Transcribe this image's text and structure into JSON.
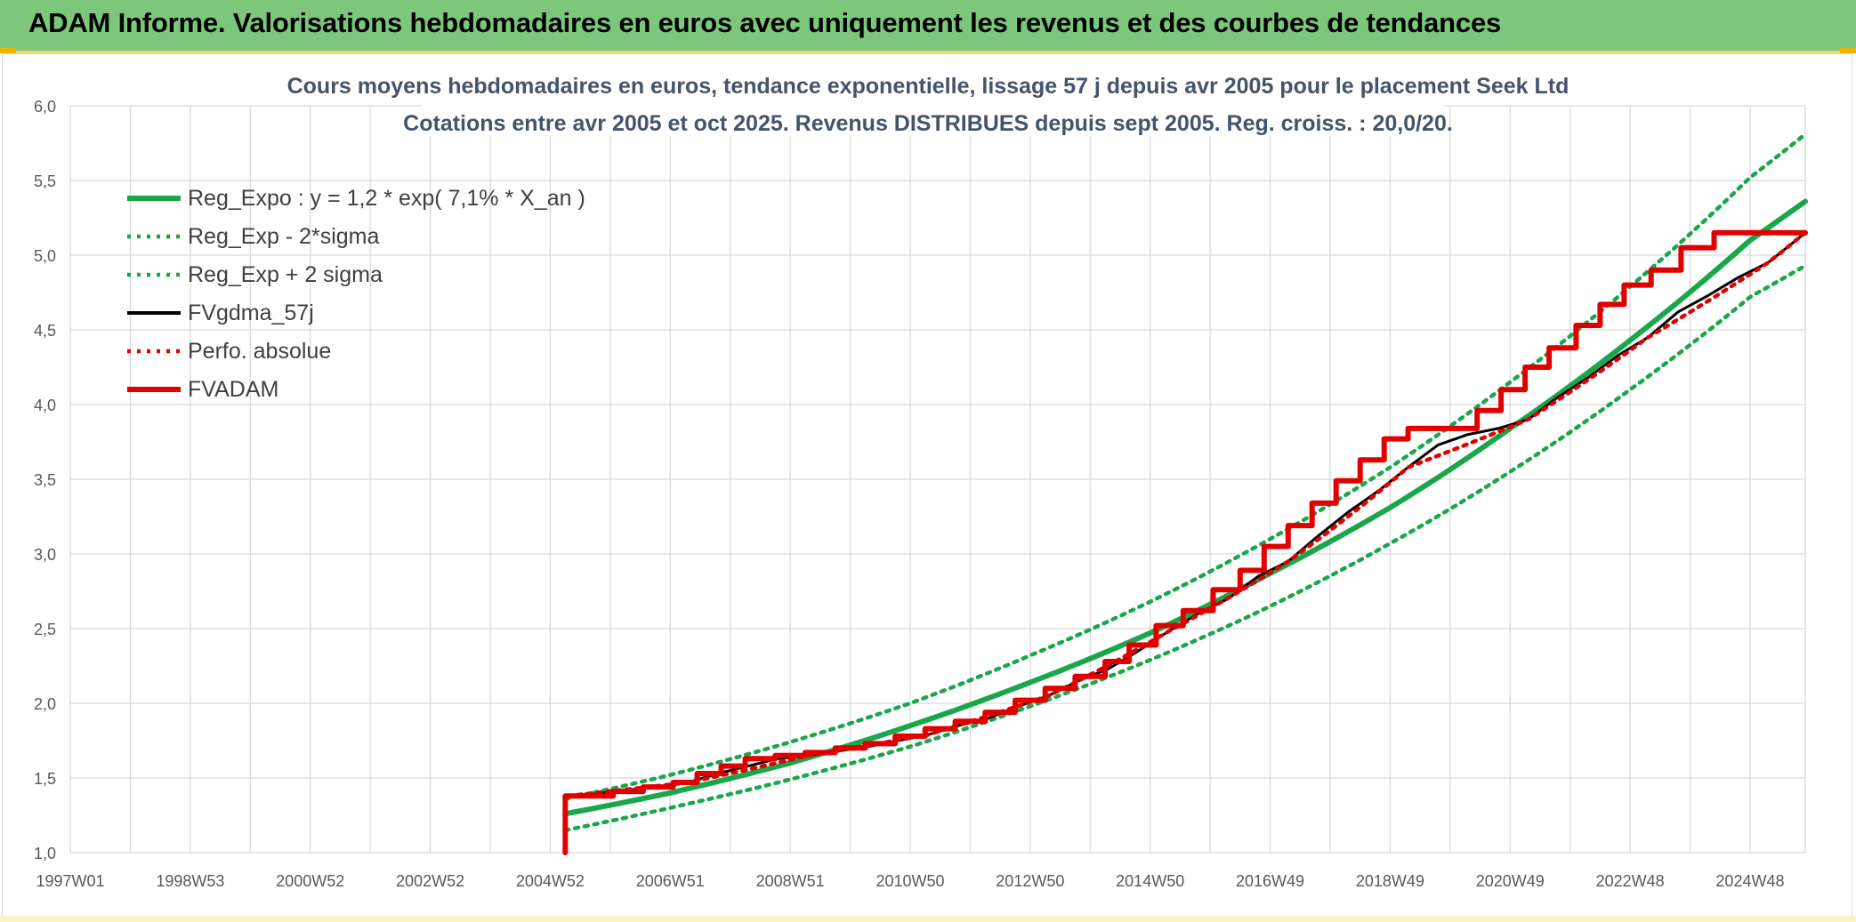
{
  "header": {
    "banner_title": "ADAM Informe. Valorisations hebdomadaires en euros avec uniquement les revenus et des courbes de tendances"
  },
  "colors": {
    "banner_bg": "#7dc77d",
    "reg_expo": "#1aa64b",
    "fv_gdma": "#000000",
    "perfo": "#e00000",
    "fvadam": "#e00000",
    "grid": "#d9d9d9"
  },
  "chart_data": {
    "type": "line",
    "title": "Cours moyens hebdomadaires en euros, tendance exponentielle, lissage 57 j depuis avr 2005 pour le placement Seek Ltd",
    "subtitle": "Cotations entre avr 2005 et oct 2025. Revenus DISTRIBUES depuis sept 2005. Reg. croiss. : 20,0/20.",
    "xlabel": "",
    "ylabel": "",
    "x_range": [
      1997.0,
      2025.92
    ],
    "ylim": [
      1.0,
      6.0
    ],
    "y_ticks": [
      "1,0",
      "1,5",
      "2,0",
      "2,5",
      "3,0",
      "3,5",
      "4,0",
      "4,5",
      "5,0",
      "5,5",
      "6,0"
    ],
    "x_ticks": [
      {
        "label": "1997W01",
        "x": 1997.0
      },
      {
        "label": "1998W53",
        "x": 1999.0
      },
      {
        "label": "2000W52",
        "x": 2001.0
      },
      {
        "label": "2002W52",
        "x": 2003.0
      },
      {
        "label": "2004W52",
        "x": 2005.0
      },
      {
        "label": "2006W51",
        "x": 2007.0
      },
      {
        "label": "2008W51",
        "x": 2009.0
      },
      {
        "label": "2010W50",
        "x": 2011.0
      },
      {
        "label": "2012W50",
        "x": 2013.0
      },
      {
        "label": "2014W50",
        "x": 2015.0
      },
      {
        "label": "2016W49",
        "x": 2017.0
      },
      {
        "label": "2018W49",
        "x": 2019.0
      },
      {
        "label": "2020W49",
        "x": 2021.0
      },
      {
        "label": "2022W48",
        "x": 2023.0
      },
      {
        "label": "2024W48",
        "x": 2025.0
      }
    ],
    "grid": true,
    "legend_position": "top-left",
    "series": [
      {
        "name": "Reg_Expo : y = 1,2 * exp( 7,1% *  X_an )",
        "style": "solid-thick",
        "color": "#1aa64b",
        "points": [
          [
            2005.25,
            1.26
          ],
          [
            2007,
            1.4
          ],
          [
            2009,
            1.6
          ],
          [
            2011,
            1.85
          ],
          [
            2013,
            2.14
          ],
          [
            2015,
            2.47
          ],
          [
            2017,
            2.87
          ],
          [
            2019,
            3.31
          ],
          [
            2021,
            3.84
          ],
          [
            2023,
            4.43
          ],
          [
            2025,
            5.1
          ],
          [
            2025.92,
            5.36
          ]
        ]
      },
      {
        "name": "Reg_Exp - 2*sigma",
        "style": "dotted",
        "color": "#1aa64b",
        "points": [
          [
            2005.25,
            1.15
          ],
          [
            2007,
            1.3
          ],
          [
            2009,
            1.49
          ],
          [
            2011,
            1.71
          ],
          [
            2013,
            1.98
          ],
          [
            2015,
            2.29
          ],
          [
            2017,
            2.65
          ],
          [
            2019,
            3.07
          ],
          [
            2021,
            3.55
          ],
          [
            2023,
            4.1
          ],
          [
            2025,
            4.72
          ],
          [
            2025.92,
            4.93
          ]
        ]
      },
      {
        "name": "Reg_Exp + 2 sigma",
        "style": "dotted",
        "color": "#1aa64b",
        "points": [
          [
            2005.25,
            1.36
          ],
          [
            2007,
            1.52
          ],
          [
            2009,
            1.74
          ],
          [
            2011,
            2.0
          ],
          [
            2013,
            2.32
          ],
          [
            2015,
            2.68
          ],
          [
            2017,
            3.1
          ],
          [
            2019,
            3.58
          ],
          [
            2021,
            4.15
          ],
          [
            2023,
            4.79
          ],
          [
            2025,
            5.52
          ],
          [
            2025.92,
            5.81
          ]
        ]
      },
      {
        "name": "FVgdma_57j",
        "style": "solid",
        "color": "#000000",
        "points": [
          [
            2005.3,
            1.38
          ],
          [
            2005.7,
            1.39
          ],
          [
            2006.3,
            1.42
          ],
          [
            2006.8,
            1.44
          ],
          [
            2007.3,
            1.47
          ],
          [
            2007.8,
            1.53
          ],
          [
            2008.3,
            1.58
          ],
          [
            2008.8,
            1.63
          ],
          [
            2009.3,
            1.65
          ],
          [
            2009.8,
            1.68
          ],
          [
            2010.3,
            1.71
          ],
          [
            2010.8,
            1.75
          ],
          [
            2011.3,
            1.79
          ],
          [
            2011.8,
            1.85
          ],
          [
            2012.3,
            1.9
          ],
          [
            2012.8,
            1.98
          ],
          [
            2013.3,
            2.05
          ],
          [
            2013.8,
            2.15
          ],
          [
            2014.3,
            2.23
          ],
          [
            2014.8,
            2.35
          ],
          [
            2015.3,
            2.48
          ],
          [
            2015.8,
            2.6
          ],
          [
            2016.3,
            2.7
          ],
          [
            2016.8,
            2.85
          ],
          [
            2017.3,
            2.95
          ],
          [
            2017.8,
            3.12
          ],
          [
            2018.3,
            3.28
          ],
          [
            2018.8,
            3.42
          ],
          [
            2019.3,
            3.58
          ],
          [
            2019.8,
            3.73
          ],
          [
            2020.3,
            3.8
          ],
          [
            2020.8,
            3.84
          ],
          [
            2021.3,
            3.9
          ],
          [
            2021.8,
            4.05
          ],
          [
            2022.3,
            4.18
          ],
          [
            2022.8,
            4.33
          ],
          [
            2023.3,
            4.45
          ],
          [
            2023.8,
            4.62
          ],
          [
            2024.3,
            4.73
          ],
          [
            2024.8,
            4.85
          ],
          [
            2025.3,
            4.95
          ],
          [
            2025.92,
            5.15
          ]
        ]
      },
      {
        "name": "Perfo. absolue",
        "style": "dotted",
        "color": "#e00000",
        "points": [
          [
            2005.3,
            1.38
          ],
          [
            2007.3,
            1.47
          ],
          [
            2009.3,
            1.65
          ],
          [
            2011.3,
            1.79
          ],
          [
            2013.3,
            2.05
          ],
          [
            2015.3,
            2.48
          ],
          [
            2017.3,
            2.95
          ],
          [
            2019.3,
            3.58
          ],
          [
            2021.3,
            3.9
          ],
          [
            2023.3,
            4.45
          ],
          [
            2025.3,
            4.95
          ],
          [
            2025.92,
            5.15
          ]
        ]
      },
      {
        "name": "FVADAM",
        "style": "solid-thick",
        "color": "#e00000",
        "steps": [
          [
            2005.25,
            1.0
          ],
          [
            2005.25,
            1.38
          ],
          [
            2006.05,
            1.41
          ],
          [
            2006.55,
            1.44
          ],
          [
            2007.05,
            1.47
          ],
          [
            2007.45,
            1.53
          ],
          [
            2007.85,
            1.58
          ],
          [
            2008.25,
            1.63
          ],
          [
            2008.75,
            1.65
          ],
          [
            2009.25,
            1.67
          ],
          [
            2009.75,
            1.7
          ],
          [
            2010.25,
            1.73
          ],
          [
            2010.75,
            1.78
          ],
          [
            2011.25,
            1.83
          ],
          [
            2011.75,
            1.88
          ],
          [
            2012.25,
            1.94
          ],
          [
            2012.75,
            2.02
          ],
          [
            2013.25,
            2.1
          ],
          [
            2013.75,
            2.18
          ],
          [
            2014.25,
            2.28
          ],
          [
            2014.65,
            2.39
          ],
          [
            2015.1,
            2.52
          ],
          [
            2015.55,
            2.62
          ],
          [
            2016.05,
            2.76
          ],
          [
            2016.5,
            2.89
          ],
          [
            2016.9,
            3.05
          ],
          [
            2017.3,
            3.19
          ],
          [
            2017.7,
            3.34
          ],
          [
            2018.1,
            3.49
          ],
          [
            2018.5,
            3.63
          ],
          [
            2018.9,
            3.77
          ],
          [
            2019.3,
            3.84
          ],
          [
            2020.45,
            3.96
          ],
          [
            2020.85,
            4.1
          ],
          [
            2021.25,
            4.25
          ],
          [
            2021.65,
            4.38
          ],
          [
            2022.1,
            4.53
          ],
          [
            2022.5,
            4.67
          ],
          [
            2022.9,
            4.8
          ],
          [
            2023.35,
            4.9
          ],
          [
            2023.85,
            5.05
          ],
          [
            2024.4,
            5.15
          ]
        ],
        "end_x": 2025.92
      }
    ]
  }
}
